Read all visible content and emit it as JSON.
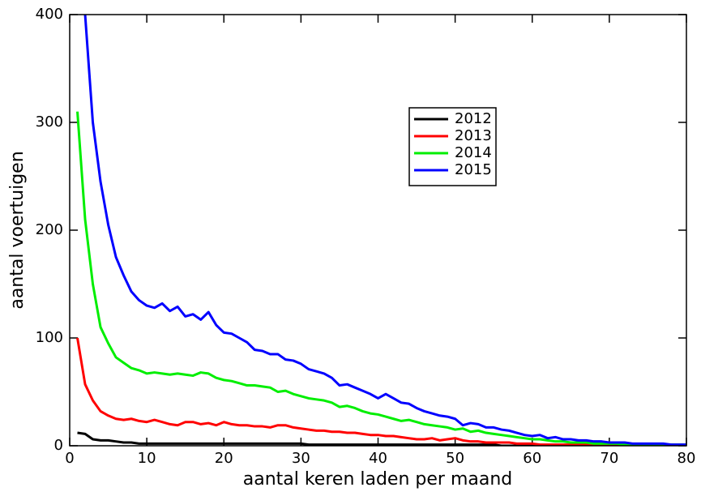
{
  "chart_data": {
    "type": "line",
    "xlabel": "aantal keren laden per maand",
    "ylabel": "aantal voertuigen",
    "x": [
      1,
      2,
      3,
      4,
      5,
      6,
      7,
      8,
      9,
      10,
      11,
      12,
      13,
      14,
      15,
      16,
      17,
      18,
      19,
      20,
      21,
      22,
      23,
      24,
      25,
      26,
      27,
      28,
      29,
      30,
      31,
      32,
      33,
      34,
      35,
      36,
      37,
      38,
      39,
      40,
      41,
      42,
      43,
      44,
      45,
      46,
      47,
      48,
      49,
      50,
      51,
      52,
      53,
      54,
      55,
      56,
      57,
      58,
      59,
      60,
      61,
      62,
      63,
      64,
      65,
      66,
      67,
      68,
      69,
      70,
      71,
      72,
      73,
      74,
      75,
      76,
      77,
      78,
      79,
      80
    ],
    "series": [
      {
        "name": "2012",
        "color": "#000000",
        "values": [
          12,
          11,
          6,
          5,
          5,
          4,
          3,
          3,
          2,
          2,
          2,
          2,
          2,
          2,
          2,
          2,
          2,
          2,
          2,
          2,
          2,
          2,
          2,
          2,
          2,
          2,
          2,
          2,
          2,
          2,
          1,
          1,
          1,
          1,
          1,
          1,
          1,
          1,
          1,
          1,
          1,
          1,
          1,
          1,
          1,
          1,
          1,
          1,
          1,
          1,
          1,
          1,
          1,
          1,
          1,
          0,
          0,
          0,
          0,
          0,
          0,
          0,
          0,
          0,
          0,
          0,
          0,
          0,
          0,
          0,
          0,
          0,
          0,
          0,
          0,
          0,
          0,
          0,
          0,
          0
        ]
      },
      {
        "name": "2013",
        "color": "#ff0000",
        "values": [
          100,
          57,
          42,
          32,
          28,
          25,
          24,
          25,
          23,
          22,
          24,
          22,
          20,
          19,
          22,
          22,
          20,
          21,
          19,
          22,
          20,
          19,
          19,
          18,
          18,
          17,
          19,
          19,
          17,
          16,
          15,
          14,
          14,
          13,
          13,
          12,
          12,
          11,
          10,
          10,
          9,
          9,
          8,
          7,
          6,
          6,
          7,
          5,
          6,
          7,
          5,
          4,
          4,
          3,
          3,
          3,
          3,
          2,
          2,
          2,
          1,
          1,
          1,
          1,
          1,
          1,
          1,
          1,
          1,
          1,
          0,
          0,
          0,
          0,
          0,
          0,
          0,
          0,
          0,
          0
        ]
      },
      {
        "name": "2014",
        "color": "#00ee00",
        "values": [
          310,
          210,
          150,
          110,
          95,
          82,
          77,
          72,
          70,
          67,
          68,
          67,
          66,
          67,
          66,
          65,
          68,
          67,
          63,
          61,
          60,
          58,
          56,
          56,
          55,
          54,
          50,
          51,
          48,
          46,
          44,
          43,
          42,
          40,
          36,
          37,
          35,
          32,
          30,
          29,
          27,
          25,
          23,
          24,
          22,
          20,
          19,
          18,
          17,
          15,
          16,
          13,
          14,
          12,
          11,
          10,
          9,
          8,
          7,
          6,
          6,
          5,
          4,
          4,
          3,
          3,
          3,
          2,
          2,
          2,
          2,
          1,
          1,
          1,
          1,
          1,
          1,
          1,
          1,
          1
        ]
      },
      {
        "name": "2015",
        "color": "#0000ff",
        "values": [
          null,
          400,
          300,
          245,
          205,
          175,
          158,
          143,
          135,
          130,
          128,
          132,
          125,
          129,
          120,
          122,
          117,
          124,
          112,
          105,
          104,
          100,
          96,
          89,
          88,
          85,
          85,
          80,
          79,
          76,
          71,
          69,
          67,
          63,
          56,
          57,
          54,
          51,
          48,
          44,
          48,
          44,
          40,
          39,
          35,
          32,
          30,
          28,
          27,
          25,
          19,
          21,
          20,
          17,
          17,
          15,
          14,
          12,
          10,
          9,
          10,
          7,
          8,
          6,
          6,
          5,
          5,
          4,
          4,
          3,
          3,
          3,
          2,
          2,
          2,
          2,
          2,
          1,
          1,
          1
        ]
      }
    ],
    "xlim": [
      0,
      80
    ],
    "xticks": [
      0,
      10,
      20,
      30,
      40,
      50,
      60,
      70,
      80
    ],
    "ylim": [
      0,
      400
    ],
    "yticks": [
      0,
      100,
      200,
      300,
      400
    ],
    "legend": "upper right"
  }
}
